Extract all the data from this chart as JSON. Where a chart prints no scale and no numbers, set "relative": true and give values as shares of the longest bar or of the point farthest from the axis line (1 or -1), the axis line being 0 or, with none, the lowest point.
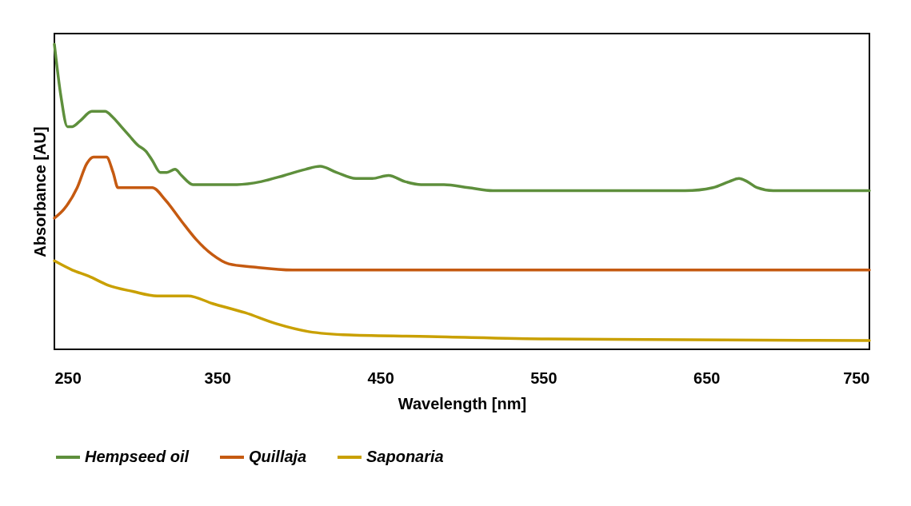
{
  "chart_data": {
    "type": "line",
    "xlabel": "Wavelength [nm]",
    "ylabel": "Absorbance [AU]",
    "relative": true,
    "xlim": [
      250,
      750
    ],
    "xticks": [
      250,
      350,
      450,
      550,
      650,
      750
    ],
    "grid": false,
    "legend": "bottom",
    "marker": "none",
    "line_style": "solid",
    "series": [
      {
        "name": "Hempseed oil",
        "color": "#5e8f3c",
        "x": [
          250,
          254,
          258,
          261,
          266,
          273,
          281,
          286,
          291,
          296,
          301,
          306,
          310,
          315,
          319,
          324,
          328,
          335,
          347,
          362,
          377,
          391,
          404,
          413,
          423,
          435,
          445,
          455,
          465,
          475,
          489,
          504,
          519,
          536,
          543,
          578,
          602,
          617,
          637,
          654,
          664,
          670,
          675,
          681,
          691,
          750
        ],
        "values": [
          1.0,
          0.83,
          0.73,
          0.73,
          0.75,
          0.78,
          0.78,
          0.76,
          0.73,
          0.7,
          0.67,
          0.65,
          0.62,
          0.58,
          0.58,
          0.59,
          0.57,
          0.54,
          0.54,
          0.54,
          0.55,
          0.57,
          0.59,
          0.6,
          0.58,
          0.56,
          0.56,
          0.57,
          0.55,
          0.54,
          0.54,
          0.53,
          0.52,
          0.52,
          0.52,
          0.52,
          0.52,
          0.52,
          0.52,
          0.53,
          0.55,
          0.56,
          0.55,
          0.53,
          0.52,
          0.52
        ]
      },
      {
        "name": "Quillaja",
        "color": "#c55a11",
        "x": [
          250,
          256,
          264,
          270,
          274,
          278,
          282,
          286,
          289,
          296,
          305,
          310,
          318,
          328,
          337,
          347,
          357,
          372,
          396,
          750
        ],
        "values": [
          0.43,
          0.46,
          0.53,
          0.61,
          0.63,
          0.63,
          0.63,
          0.58,
          0.53,
          0.53,
          0.53,
          0.53,
          0.49,
          0.42,
          0.36,
          0.31,
          0.28,
          0.27,
          0.26,
          0.26
        ]
      },
      {
        "name": "Saponaria",
        "color": "#c9a000",
        "x": [
          250,
          261,
          271,
          283,
          298,
          313,
          332,
          347,
          367,
          386,
          406,
          431,
          480,
          553,
          750
        ],
        "values": [
          0.29,
          0.26,
          0.24,
          0.21,
          0.19,
          0.175,
          0.175,
          0.15,
          0.12,
          0.084,
          0.058,
          0.047,
          0.042,
          0.034,
          0.029
        ]
      }
    ]
  }
}
